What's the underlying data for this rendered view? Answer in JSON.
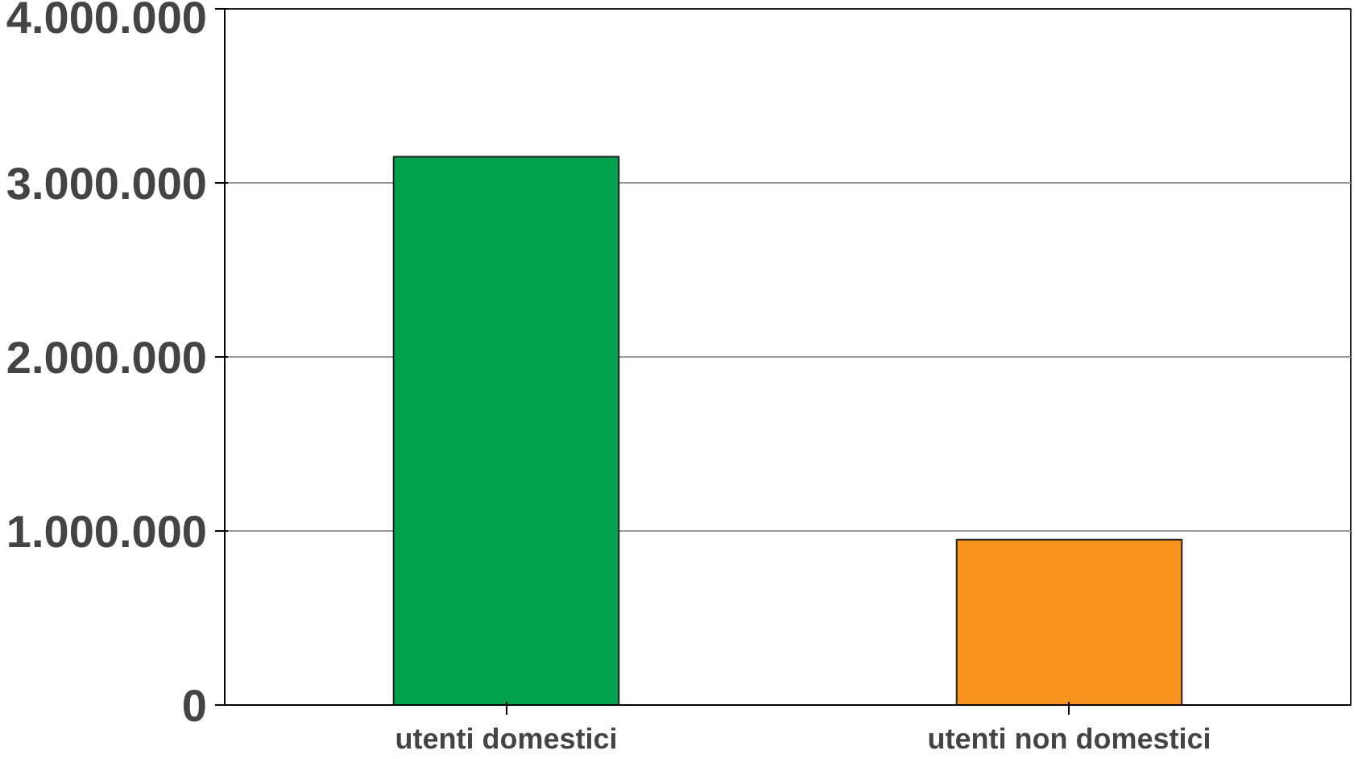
{
  "chart_data": {
    "type": "bar",
    "categories": [
      "utenti domestici",
      "utenti non domestici"
    ],
    "values": [
      3150000,
      950000
    ],
    "colors": [
      "#00a14b",
      "#f7941d"
    ],
    "ylim": [
      0,
      4000000
    ],
    "yticks": [
      {
        "value": 0,
        "label": "0"
      },
      {
        "value": 1000000,
        "label": "1.000.000"
      },
      {
        "value": 2000000,
        "label": "2.000.000"
      },
      {
        "value": 3000000,
        "label": "3.000.000"
      },
      {
        "value": 4000000,
        "label": "4.000.000"
      }
    ],
    "grid": "y"
  }
}
